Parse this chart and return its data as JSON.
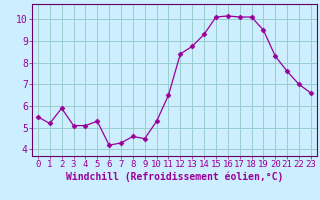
{
  "x": [
    0,
    1,
    2,
    3,
    4,
    5,
    6,
    7,
    8,
    9,
    10,
    11,
    12,
    13,
    14,
    15,
    16,
    17,
    18,
    19,
    20,
    21,
    22,
    23
  ],
  "y": [
    5.5,
    5.2,
    5.9,
    5.1,
    5.1,
    5.3,
    4.2,
    4.3,
    4.6,
    4.5,
    5.3,
    6.5,
    8.4,
    8.75,
    9.3,
    10.1,
    10.15,
    10.1,
    10.1,
    9.5,
    8.3,
    7.6,
    7.0,
    6.6
  ],
  "line_color": "#990099",
  "marker": "D",
  "marker_size": 2.5,
  "bg_color": "#cceeff",
  "grid_color": "#99cccc",
  "ylim": [
    3.7,
    10.7
  ],
  "xlim": [
    -0.5,
    23.5
  ],
  "yticks": [
    4,
    5,
    6,
    7,
    8,
    9,
    10
  ],
  "xticks": [
    0,
    1,
    2,
    3,
    4,
    5,
    6,
    7,
    8,
    9,
    10,
    11,
    12,
    13,
    14,
    15,
    16,
    17,
    18,
    19,
    20,
    21,
    22,
    23
  ],
  "xlabel": "Windchill (Refroidissement éolien,°C)",
  "xlabel_color": "#990099",
  "axis_color": "#660066",
  "tick_label_color": "#990099",
  "xlabel_fontsize": 7,
  "ytick_fontsize": 7,
  "xtick_fontsize": 6.5
}
